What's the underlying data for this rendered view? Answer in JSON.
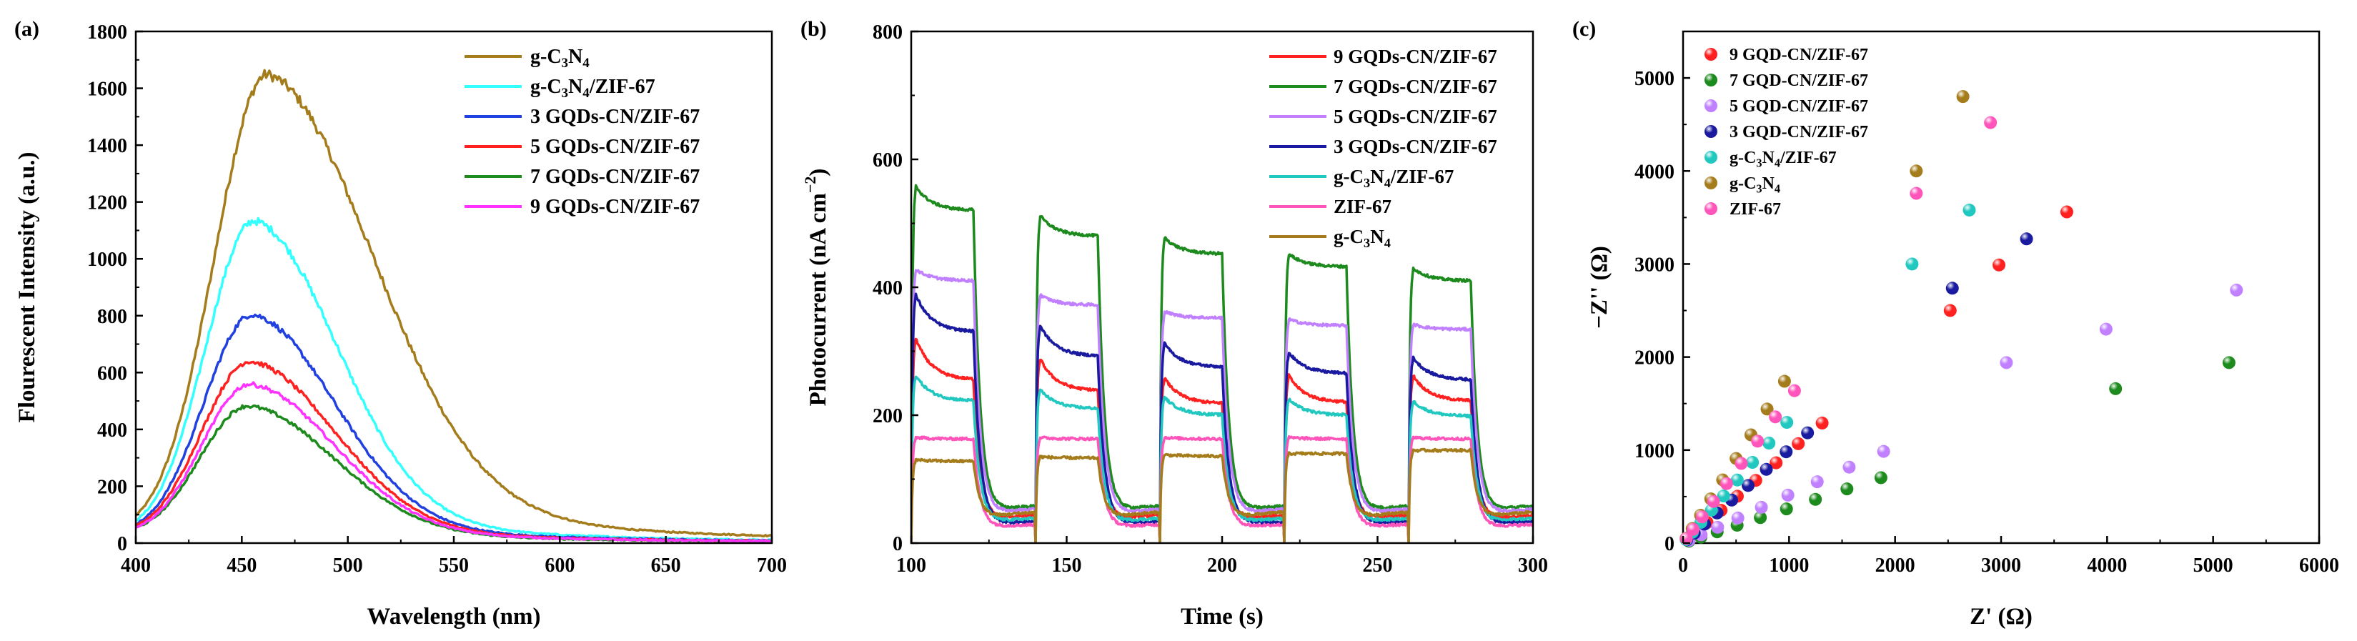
{
  "colors": {
    "gC3N4": "#a57c1b",
    "gZIF": "#33ffff",
    "q3": "#2040e0",
    "q5": "#ff2020",
    "q7": "#1c8a1c",
    "q9": "#ff33ff",
    "zif": "#ff55bb",
    "q5p": "#c080ff",
    "q3dark": "#1a1aa0",
    "teal": "#20c8c0"
  },
  "chart_data": [
    {
      "panel": "(a)",
      "type": "line",
      "xlabel": "Wavelength (nm)",
      "ylabel": "Flourescent Intensity (a.u.)",
      "xlim": [
        400,
        700
      ],
      "ylim": [
        0,
        1800
      ],
      "xticks": [
        400,
        450,
        500,
        550,
        600,
        650,
        700
      ],
      "yticks": [
        0,
        200,
        400,
        600,
        800,
        1000,
        1200,
        1400,
        1600,
        1800
      ],
      "legend_position": "top-right",
      "series": [
        {
          "name": "g-C3N4",
          "label": {
            "pre": "g-C",
            "sub1": "3",
            "mid": "N",
            "sub2": "4",
            "post": ""
          },
          "color": "#a57c1b",
          "peak_x": 462,
          "peak_y": 1645,
          "sigL": 25,
          "sigR": 50
        },
        {
          "name": "g-C3N4/ZIF-67",
          "label": {
            "pre": "g-C",
            "sub1": "3",
            "mid": "N",
            "sub2": "4",
            "post": "/ZIF-67"
          },
          "color": "#33ffff",
          "peak_x": 456,
          "peak_y": 1130,
          "sigL": 23,
          "sigR": 39
        },
        {
          "name": "3 GQDs-CN/ZIF-67",
          "label": {
            "pre": "3 GQDs-CN/ZIF-67"
          },
          "color": "#2040e0",
          "peak_x": 455,
          "peak_y": 800,
          "sigL": 23,
          "sigR": 39
        },
        {
          "name": "5 GQDs-CN/ZIF-67",
          "label": {
            "pre": "5 GQDs-CN/ZIF-67"
          },
          "color": "#ff2020",
          "peak_x": 454,
          "peak_y": 635,
          "sigL": 23,
          "sigR": 40
        },
        {
          "name": "7 GQDs-CN/ZIF-67",
          "label": {
            "pre": "7 GQDs-CN/ZIF-67"
          },
          "color": "#1c8a1c",
          "peak_x": 453,
          "peak_y": 478,
          "sigL": 23,
          "sigR": 41
        },
        {
          "name": "9 GQDs-CN/ZIF-67",
          "label": {
            "pre": "9 GQDs-CN/ZIF-67"
          },
          "color": "#ff33ff",
          "peak_x": 454,
          "peak_y": 555,
          "sigL": 23,
          "sigR": 40
        }
      ]
    },
    {
      "panel": "(b)",
      "type": "line",
      "xlabel": "Time (s)",
      "ylabel": {
        "pre": "Photocurrent (nA cm",
        "sup": "−2",
        "post": ")"
      },
      "xlim": [
        100,
        300
      ],
      "ylim": [
        0,
        800
      ],
      "xticks": [
        100,
        150,
        200,
        250,
        300
      ],
      "yticks": [
        0,
        200,
        400,
        600,
        800
      ],
      "legend_position": "top-right",
      "light_on": [
        100,
        140,
        180,
        220,
        260
      ],
      "light_duration": 20,
      "series": [
        {
          "name": "9 GQDs-CN/ZIF-67",
          "label": {
            "pre": "9 GQDs-CN/ZIF-67"
          },
          "color": "#ff2020",
          "dark": 45,
          "peaks": [
            320,
            288,
            258,
            262,
            262
          ],
          "steady": [
            255,
            238,
            218,
            220,
            222
          ]
        },
        {
          "name": "7 GQDs-CN/ZIF-67",
          "label": {
            "pre": "7 GQDs-CN/ZIF-67"
          },
          "color": "#1c8a1c",
          "dark": 60,
          "peaks": [
            558,
            512,
            478,
            452,
            430
          ],
          "steady": [
            520,
            480,
            452,
            432,
            410
          ]
        },
        {
          "name": "5 GQDs-CN/ZIF-67",
          "label": {
            "pre": "5 GQDs-CN/ZIF-67"
          },
          "color": "#c080ff",
          "dark": 55,
          "peaks": [
            428,
            388,
            362,
            350,
            342
          ],
          "steady": [
            410,
            372,
            352,
            340,
            334
          ]
        },
        {
          "name": "3 GQDs-CN/ZIF-67",
          "label": {
            "pre": "3 GQDs-CN/ZIF-67"
          },
          "color": "#1a1aa0",
          "dark": 35,
          "peaks": [
            388,
            340,
            312,
            298,
            290
          ],
          "steady": [
            330,
            292,
            275,
            265,
            255
          ]
        },
        {
          "name": "g-C3N4/ZIF-67",
          "label": {
            "pre": "g-C",
            "sub1": "3",
            "mid": "N",
            "sub2": "4",
            "post": "/ZIF-67"
          },
          "color": "#20c8c0",
          "dark": 40,
          "peaks": [
            262,
            240,
            228,
            225,
            222
          ],
          "steady": [
            222,
            210,
            200,
            200,
            198
          ]
        },
        {
          "name": "ZIF-67",
          "label": {
            "pre": "ZIF-67"
          },
          "color": "#ff55bb",
          "dark": 30,
          "peaks": [
            165,
            165,
            165,
            165,
            165
          ],
          "steady": [
            163,
            163,
            163,
            163,
            163
          ]
        },
        {
          "name": "g-C3N4",
          "label": {
            "pre": "g-C",
            "sub1": "3",
            "mid": "N",
            "sub2": "4",
            "post": ""
          },
          "color": "#a57c1b",
          "dark": 50,
          "peaks": [
            130,
            135,
            138,
            140,
            145
          ],
          "steady": [
            128,
            133,
            136,
            140,
            145
          ]
        }
      ]
    },
    {
      "panel": "(c)",
      "type": "scatter",
      "xlabel": "Z' (Ω)",
      "ylabel": "−Z'' (Ω)",
      "xlim": [
        0,
        6000
      ],
      "ylim": [
        0,
        5500
      ],
      "xticks": [
        0,
        1000,
        2000,
        3000,
        4000,
        5000,
        6000
      ],
      "yticks": [
        0,
        1000,
        2000,
        3000,
        4000,
        5000
      ],
      "legend_position": "top-left",
      "series": [
        {
          "name": "9 GQD-CN/ZIF-67",
          "label": {
            "pre": "9 GQD-CN/ZIF-67"
          },
          "color": "#ff2020",
          "x_end": 3620,
          "y_end": 3560,
          "extra": [
            [
              2520,
              2500
            ],
            [
              2980,
              2990
            ]
          ]
        },
        {
          "name": "7 GQD-CN/ZIF-67",
          "label": {
            "pre": "7 GQD-CN/ZIF-67"
          },
          "color": "#1c8a1c",
          "x_end": 5150,
          "y_end": 1940,
          "extra": [
            [
              4080,
              1660
            ]
          ]
        },
        {
          "name": "5 GQD-CN/ZIF-67",
          "label": {
            "pre": "5 GQD-CN/ZIF-67"
          },
          "color": "#c080ff",
          "x_end": 5220,
          "y_end": 2720,
          "extra": [
            [
              3990,
              2300
            ],
            [
              3050,
              1940
            ]
          ]
        },
        {
          "name": "3 GQD-CN/ZIF-67",
          "label": {
            "pre": "3 GQD-CN/ZIF-67"
          },
          "color": "#1a1aa0",
          "x_end": 3240,
          "y_end": 3270,
          "extra": [
            [
              2540,
              2740
            ]
          ]
        },
        {
          "name": "g-C3N4/ZIF-67",
          "label": {
            "pre": "g-C",
            "sub1": "3",
            "mid": "N",
            "sub2": "4",
            "post": "/ZIF-67"
          },
          "color": "#20c8c0",
          "x_end": 2700,
          "y_end": 3580,
          "extra": [
            [
              2160,
              3000
            ]
          ]
        },
        {
          "name": "g-C3N4",
          "label": {
            "pre": "g-C",
            "sub1": "3",
            "mid": "N",
            "sub2": "4",
            "post": ""
          },
          "color": "#a57c1b",
          "x_end": 2640,
          "y_end": 4800,
          "extra": [
            [
              2200,
              4000
            ]
          ]
        },
        {
          "name": "ZIF-67",
          "label": {
            "pre": "ZIF-67"
          },
          "color": "#ff55bb",
          "x_end": 2900,
          "y_end": 4520,
          "extra": [
            [
              2200,
              3760
            ]
          ]
        }
      ]
    }
  ]
}
